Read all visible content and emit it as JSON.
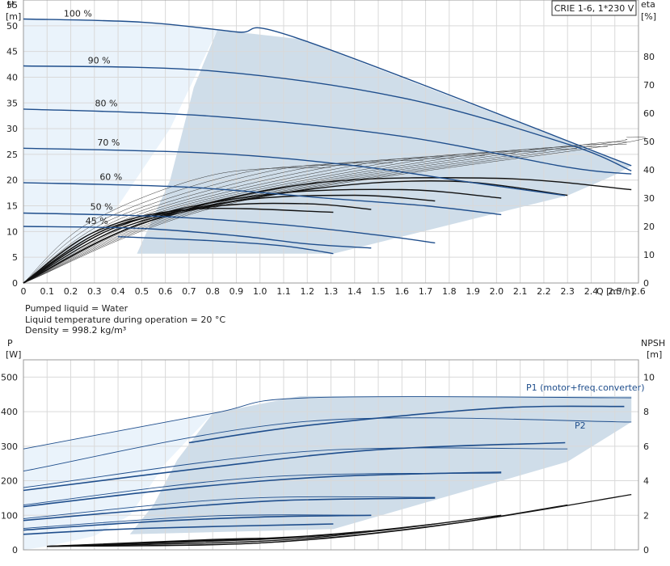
{
  "chart_data": [
    {
      "type": "line",
      "title": "CRIE 1-6, 1*230 V",
      "xlabel": "Q [m³/h]",
      "ylabel": "H",
      "ylabel_unit": "[m]",
      "y2label": "eta",
      "y2label_unit": "[%]",
      "xlim": [
        0,
        2.6
      ],
      "ylim": [
        0,
        55
      ],
      "y2lim": [
        0,
        100
      ],
      "x_ticks": [
        "0",
        "0.1",
        "0.2",
        "0.3",
        "0.4",
        "0.5",
        "0.6",
        "0.7",
        "0.8",
        "0.9",
        "1.0",
        "1.1",
        "1.2",
        "1.3",
        "1.4",
        "1.5",
        "1.6",
        "1.7",
        "1.8",
        "1.9",
        "2.0",
        "2.1",
        "2.2",
        "2.3",
        "2.4",
        "2.5",
        "2.6"
      ],
      "y_ticks": [
        "0",
        "5",
        "10",
        "15",
        "20",
        "25",
        "30",
        "35",
        "40",
        "45",
        "50",
        "55"
      ],
      "y2_ticks": [
        "0",
        "10",
        "20",
        "30",
        "40",
        "50",
        "60",
        "70",
        "80"
      ],
      "grid": true,
      "speed_curves": [
        {
          "name": "100 %",
          "x": [
            0,
            0.5,
            0.9,
            1.17,
            2.57
          ],
          "y": [
            51.3,
            50.7,
            48.8,
            47.4,
            22.8
          ]
        },
        {
          "name": "90 %",
          "x": [
            0,
            0.8,
            1.6,
            2.3,
            2.57
          ],
          "y": [
            42.2,
            41.2,
            36.0,
            27.0,
            21.8
          ]
        },
        {
          "name": "80 %",
          "x": [
            0,
            0.8,
            1.6,
            2.3,
            2.57
          ],
          "y": [
            33.8,
            32.4,
            28.5,
            22.5,
            21.2
          ]
        },
        {
          "name": "70 %",
          "x": [
            0,
            0.8,
            1.4,
            1.9,
            2.29
          ],
          "y": [
            26.2,
            25.2,
            22.8,
            19.5,
            17.0
          ]
        },
        {
          "name": "60 %",
          "x": [
            0,
            0.7,
            1.3,
            1.7,
            2.02
          ],
          "y": [
            19.5,
            18.6,
            16.4,
            15.0,
            13.3
          ]
        },
        {
          "name": "50 %",
          "x": [
            0,
            0.6,
            1.1,
            1.5,
            1.74
          ],
          "y": [
            13.6,
            12.9,
            11.3,
            9.3,
            7.8
          ]
        },
        {
          "name": "45 %",
          "x": [
            0,
            0.5,
            0.9,
            1.2,
            1.47
          ],
          "y": [
            11.0,
            10.6,
            9.2,
            7.6,
            6.8
          ]
        },
        {
          "name": "",
          "x": [
            0.4,
            0.8,
            1.1,
            1.31
          ],
          "y": [
            9.0,
            8.2,
            7.2,
            5.7
          ]
        }
      ],
      "eta_curves": [
        {
          "x": [
            0,
            0.5,
            1.2,
            2.0,
            2.57
          ],
          "y": [
            0,
            21,
            35,
            37,
            33
          ]
        },
        {
          "x": [
            0,
            0.5,
            1.2,
            1.8,
            2.3
          ],
          "y": [
            0,
            21,
            33,
            36,
            31
          ]
        },
        {
          "x": [
            0,
            0.4,
            1.0,
            1.6,
            2.02
          ],
          "y": [
            0,
            20,
            31,
            33,
            30
          ]
        },
        {
          "x": [
            0,
            0.4,
            0.9,
            1.4,
            1.74
          ],
          "y": [
            0,
            19,
            29,
            31,
            29
          ]
        },
        {
          "x": [
            0,
            0.35,
            0.8,
            1.2,
            1.47
          ],
          "y": [
            0,
            19,
            27,
            28,
            26
          ]
        },
        {
          "x": [
            0,
            0.3,
            0.7,
            1.31
          ],
          "y": [
            0,
            18,
            26,
            25
          ]
        }
      ],
      "labels": [
        "100 %",
        "90 %",
        "80 %",
        "70 %",
        "60 %",
        "50 %",
        "45 %"
      ]
    },
    {
      "type": "line",
      "ylabel": "P",
      "ylabel_unit": "[W]",
      "y2label": "NPSH",
      "y2label_unit": "[m]",
      "xlim": [
        0,
        2.6
      ],
      "ylim": [
        0,
        550
      ],
      "y2lim": [
        0,
        11
      ],
      "y_ticks": [
        "0",
        "100",
        "200",
        "300",
        "400",
        "500"
      ],
      "y2_ticks": [
        "0",
        "2",
        "4",
        "6",
        "8",
        "10"
      ],
      "grid": true,
      "series_labels": [
        "P1 (motor+freq.converter)",
        "P2"
      ],
      "p1_curves": [
        {
          "x": [
            0.7,
            1.2,
            2.0,
            2.54
          ],
          "y": [
            310,
            360,
            410,
            415
          ]
        },
        {
          "x": [
            0,
            0.8,
            1.5,
            2.29
          ],
          "y": [
            172,
            240,
            290,
            310
          ]
        },
        {
          "x": [
            0,
            0.7,
            1.3,
            2.02
          ],
          "y": [
            125,
            180,
            212,
            225
          ]
        },
        {
          "x": [
            0,
            0.6,
            1.1,
            1.74
          ],
          "y": [
            85,
            120,
            143,
            150
          ]
        },
        {
          "x": [
            0,
            0.5,
            1.0,
            1.47
          ],
          "y": [
            57,
            80,
            95,
            100
          ]
        },
        {
          "x": [
            0,
            0.5,
            1.31
          ],
          "y": [
            45,
            62,
            75
          ]
        }
      ],
      "p2_curves": [
        {
          "x": [
            0,
            0.8,
            1.2,
            2.57
          ],
          "y": [
            292,
            395,
            440,
            440
          ]
        },
        {
          "x": [
            0,
            1.2,
            2.57
          ],
          "y": [
            228,
            372,
            370
          ]
        },
        {
          "x": [
            0,
            1.2,
            2.3
          ],
          "y": [
            180,
            285,
            292
          ]
        },
        {
          "x": [
            0,
            1.0,
            2.02
          ],
          "y": [
            130,
            210,
            222
          ]
        },
        {
          "x": [
            0,
            0.9,
            1.74
          ],
          "y": [
            90,
            148,
            152
          ]
        },
        {
          "x": [
            0,
            0.8,
            1.47
          ],
          "y": [
            62,
            98,
            100
          ]
        }
      ],
      "npsh_curves": [
        {
          "x": [
            0.1,
            1.0,
            1.8,
            2.57
          ],
          "y": [
            0.2,
            0.4,
            1.5,
            3.2
          ]
        },
        {
          "x": [
            0.1,
            1.0,
            1.7,
            2.3
          ],
          "y": [
            0.2,
            0.4,
            1.3,
            2.6
          ]
        },
        {
          "x": [
            0.1,
            1.0,
            1.5,
            2.02
          ],
          "y": [
            0.2,
            0.5,
            1.1,
            2.0
          ]
        },
        {
          "x": [
            0.1,
            1.0,
            1.4,
            1.74
          ],
          "y": [
            0.2,
            0.6,
            1.0,
            1.5
          ]
        },
        {
          "x": [
            0.1,
            0.9,
            1.2,
            1.47
          ],
          "y": [
            0.2,
            0.6,
            0.8,
            1.1
          ]
        },
        {
          "x": [
            0.1,
            0.8,
            1.1,
            1.31
          ],
          "y": [
            0.2,
            0.6,
            0.7,
            0.9
          ]
        }
      ]
    }
  ],
  "notes": [
    "Pumped liquid = Water",
    "Liquid temperature during operation = 20 °C",
    "Density = 998.2 kg/m³"
  ],
  "colors": {
    "curve_blue": "#1f4e8c",
    "light_fill": "#eaf3fb",
    "mid_fill": "#cfdde9",
    "grid": "#d9d9d9",
    "eta": "#111111"
  }
}
